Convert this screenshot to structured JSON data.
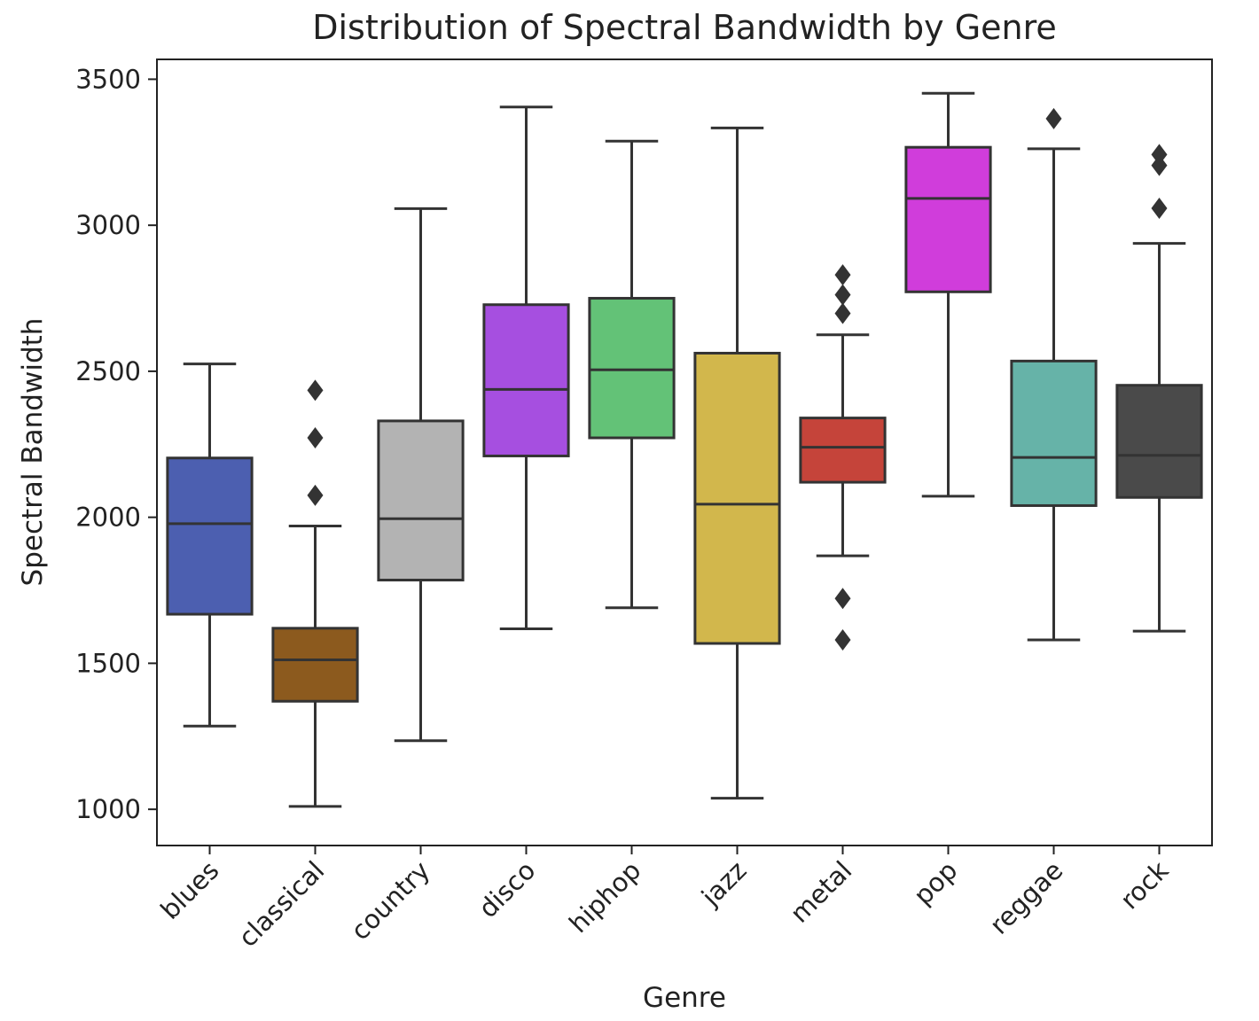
{
  "chart_data": {
    "type": "box",
    "title": "Distribution of Spectral Bandwidth by Genre",
    "xlabel": "Genre",
    "ylabel": "Spectral Bandwidth",
    "ylim": [
      876,
      3568
    ],
    "yticks": [
      1000,
      1500,
      2000,
      2500,
      3000,
      3500
    ],
    "grid": false,
    "categories": [
      "blues",
      "classical",
      "country",
      "disco",
      "hiphop",
      "jazz",
      "metal",
      "pop",
      "reggae",
      "rock"
    ],
    "boxes": [
      {
        "name": "blues",
        "color": "#4c5fb0",
        "whisker_low": 1285,
        "q1": 1668,
        "median": 1978,
        "q3": 2203,
        "whisker_high": 2525,
        "outliers": []
      },
      {
        "name": "classical",
        "color": "#8c5a1e",
        "whisker_low": 1010,
        "q1": 1370,
        "median": 1512,
        "q3": 1620,
        "whisker_high": 1970,
        "outliers": [
          2075,
          2272,
          2435
        ]
      },
      {
        "name": "country",
        "color": "#b3b3b3",
        "whisker_low": 1235,
        "q1": 1785,
        "median": 1995,
        "q3": 2330,
        "whisker_high": 3057,
        "outliers": []
      },
      {
        "name": "disco",
        "color": "#a64fe0",
        "whisker_low": 1618,
        "q1": 2210,
        "median": 2438,
        "q3": 2728,
        "whisker_high": 3405,
        "outliers": []
      },
      {
        "name": "hiphop",
        "color": "#63c277",
        "whisker_low": 1690,
        "q1": 2272,
        "median": 2505,
        "q3": 2750,
        "whisker_high": 3288,
        "outliers": []
      },
      {
        "name": "jazz",
        "color": "#d2b74c",
        "whisker_low": 1038,
        "q1": 1568,
        "median": 2045,
        "q3": 2562,
        "whisker_high": 3333,
        "outliers": []
      },
      {
        "name": "metal",
        "color": "#c5443a",
        "whisker_low": 1868,
        "q1": 2120,
        "median": 2240,
        "q3": 2340,
        "whisker_high": 2625,
        "outliers": [
          1580,
          1722,
          2698,
          2762,
          2830
        ]
      },
      {
        "name": "pop",
        "color": "#d03ddb",
        "whisker_low": 2072,
        "q1": 2772,
        "median": 3092,
        "q3": 3267,
        "whisker_high": 3452,
        "outliers": []
      },
      {
        "name": "reggae",
        "color": "#66b3a8",
        "whisker_low": 1580,
        "q1": 2040,
        "median": 2205,
        "q3": 2535,
        "whisker_high": 3262,
        "outliers": [
          3365
        ]
      },
      {
        "name": "rock",
        "color": "#4a4a4a",
        "whisker_low": 1610,
        "q1": 2068,
        "median": 2212,
        "q3": 2452,
        "whisker_high": 2938,
        "outliers": [
          3058,
          3205,
          3242
        ]
      }
    ]
  }
}
